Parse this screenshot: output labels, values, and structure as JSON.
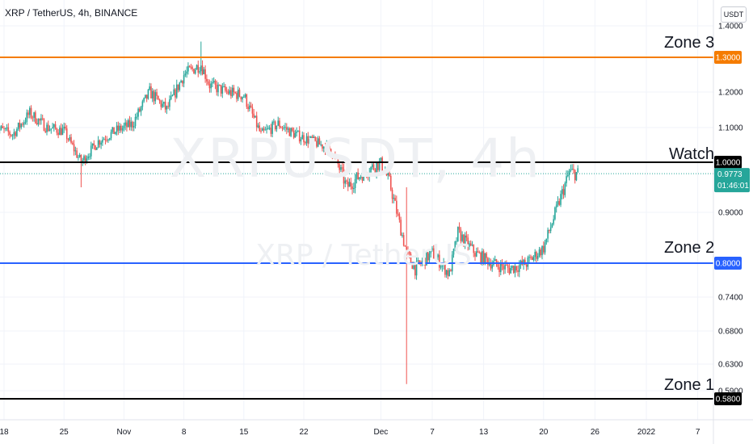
{
  "header": {
    "title": "XRP / TetherUS, 4h, BINANCE",
    "watermark_symbol": "XRPUSDT, 4h",
    "watermark_name": "XRP / TetherUS",
    "currency": "USDT"
  },
  "colors": {
    "up": "#26a69a",
    "down": "#ef5350",
    "zone3": "#f57c00",
    "zone2": "#2962ff",
    "black": "#000000",
    "last": "#26a69a"
  },
  "chart_data": {
    "type": "candlestick",
    "title": "XRP / TetherUS, 4h, BINANCE",
    "ylim": [
      0.57,
      1.45
    ],
    "y_ticks": [
      {
        "value": 1.4,
        "label": "1.4000"
      },
      {
        "value": 1.2,
        "label": "1.2000"
      },
      {
        "value": 1.1,
        "label": "1.1000"
      },
      {
        "value": 0.9,
        "label": "0.9000"
      },
      {
        "value": 0.74,
        "label": "0.7400"
      },
      {
        "value": 0.68,
        "label": "0.6800"
      },
      {
        "value": 0.63,
        "label": "0.6300"
      },
      {
        "value": 0.59,
        "label": "0.5900"
      }
    ],
    "x_ticks": [
      {
        "date": "2021-10-18",
        "label": "18"
      },
      {
        "date": "2021-10-25",
        "label": "25"
      },
      {
        "date": "2021-11-01",
        "label": "Nov"
      },
      {
        "date": "2021-11-08",
        "label": "8"
      },
      {
        "date": "2021-11-15",
        "label": "15"
      },
      {
        "date": "2021-11-22",
        "label": "22"
      },
      {
        "date": "2021-12-01",
        "label": "Dec"
      },
      {
        "date": "2021-12-07",
        "label": "7"
      },
      {
        "date": "2021-12-13",
        "label": "13"
      },
      {
        "date": "2021-12-20",
        "label": "20"
      },
      {
        "date": "2021-12-26",
        "label": "26"
      },
      {
        "date": "2022-01-01",
        "label": "2022"
      },
      {
        "date": "2022-01-07",
        "label": "7"
      }
    ],
    "x_range": [
      "2021-10-18",
      "2022-01-09"
    ],
    "levels": [
      {
        "name": "Zone 3",
        "value": 1.3,
        "label": "1.3000",
        "color": "#f57c00"
      },
      {
        "name": "Watch",
        "value": 1.0,
        "label": "1.0000",
        "color": "#000000"
      },
      {
        "name": "Zone 2",
        "value": 0.8,
        "label": "0.8000",
        "color": "#2962ff"
      },
      {
        "name": "Zone 1",
        "value": 0.58,
        "label": "0.5800",
        "color": "#000000"
      }
    ],
    "last_price": {
      "value": 0.9773,
      "label": "0.9773",
      "countdown": "01:46:01"
    },
    "close_path": [
      {
        "date": "2021-10-17",
        "close": 1.1
      },
      {
        "date": "2021-10-19",
        "close": 1.08
      },
      {
        "date": "2021-10-21",
        "close": 1.14
      },
      {
        "date": "2021-10-23",
        "close": 1.1
      },
      {
        "date": "2021-10-25",
        "close": 1.09
      },
      {
        "date": "2021-10-27",
        "close": 1.0
      },
      {
        "date": "2021-10-29",
        "close": 1.06
      },
      {
        "date": "2021-10-31",
        "close": 1.09
      },
      {
        "date": "2021-11-02",
        "close": 1.11
      },
      {
        "date": "2021-11-04",
        "close": 1.2
      },
      {
        "date": "2021-11-06",
        "close": 1.15
      },
      {
        "date": "2021-11-08",
        "close": 1.25
      },
      {
        "date": "2021-11-10",
        "close": 1.28
      },
      {
        "date": "2021-11-11",
        "close": 1.22
      },
      {
        "date": "2021-11-13",
        "close": 1.2
      },
      {
        "date": "2021-11-15",
        "close": 1.19
      },
      {
        "date": "2021-11-17",
        "close": 1.08
      },
      {
        "date": "2021-11-19",
        "close": 1.11
      },
      {
        "date": "2021-11-21",
        "close": 1.08
      },
      {
        "date": "2021-11-23",
        "close": 1.06
      },
      {
        "date": "2021-11-25",
        "close": 1.04
      },
      {
        "date": "2021-11-27",
        "close": 0.95
      },
      {
        "date": "2021-11-29",
        "close": 0.98
      },
      {
        "date": "2021-12-01",
        "close": 1.0
      },
      {
        "date": "2021-12-02",
        "close": 0.96
      },
      {
        "date": "2021-12-04",
        "close": 0.82
      },
      {
        "date": "2021-12-05",
        "close": 0.79
      },
      {
        "date": "2021-12-07",
        "close": 0.82
      },
      {
        "date": "2021-12-09",
        "close": 0.78
      },
      {
        "date": "2021-12-10",
        "close": 0.86
      },
      {
        "date": "2021-12-12",
        "close": 0.82
      },
      {
        "date": "2021-12-14",
        "close": 0.8
      },
      {
        "date": "2021-12-16",
        "close": 0.79
      },
      {
        "date": "2021-12-18",
        "close": 0.8
      },
      {
        "date": "2021-12-20",
        "close": 0.83
      },
      {
        "date": "2021-12-22",
        "close": 0.93
      },
      {
        "date": "2021-12-23",
        "close": 0.98
      },
      {
        "date": "2021-12-24",
        "close": 0.9773
      }
    ],
    "extremes": [
      {
        "date": "2021-11-10",
        "high": 1.35
      },
      {
        "date": "2021-10-27",
        "low": 0.95
      },
      {
        "date": "2021-12-04",
        "low": 0.6
      },
      {
        "date": "2021-12-04",
        "high": 0.95
      }
    ]
  },
  "annotations": {
    "zone3_label": "Zone 3",
    "watch_label": "Watch",
    "zone2_label": "Zone 2",
    "zone1_label": "Zone 1"
  }
}
